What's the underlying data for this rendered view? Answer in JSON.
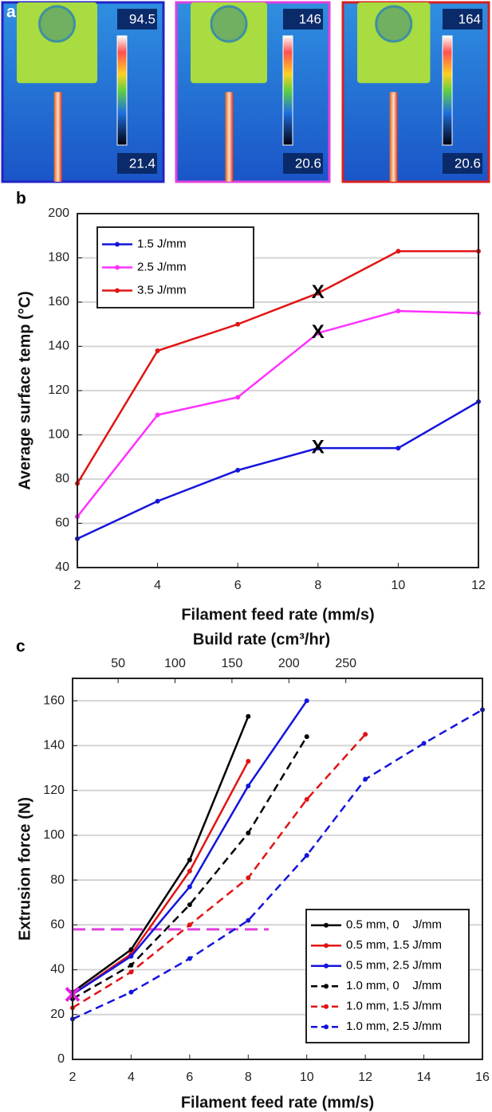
{
  "panel_a": {
    "label": "a",
    "images": [
      {
        "max": 94.5,
        "min": 21.4,
        "border": "#2323c8"
      },
      {
        "max": 146,
        "min": 20.6,
        "border": "#e040e0"
      },
      {
        "max": 164,
        "min": 20.6,
        "border": "#d82020"
      }
    ]
  },
  "chart_data": [
    {
      "type": "line",
      "label": "b",
      "xlabel": "Filament feed rate (mm/s)",
      "ylabel": "Average surface temp (°C)",
      "xlim": [
        2,
        12
      ],
      "xticks": [
        2,
        4,
        6,
        8,
        10,
        12
      ],
      "ylim": [
        40,
        200
      ],
      "yticks": [
        40,
        60,
        80,
        100,
        120,
        140,
        160,
        180,
        200
      ],
      "grid": true,
      "legend": "upper left",
      "series": [
        {
          "name": "1.5 J/mm",
          "color": "#1414dc",
          "linestyle": "solid",
          "x": [
            2,
            4,
            6,
            8,
            10,
            12
          ],
          "values": [
            53,
            70,
            84,
            94,
            94,
            115
          ]
        },
        {
          "name": "2.5 J/mm",
          "color": "#ff30ff",
          "linestyle": "solid",
          "x": [
            2,
            4,
            6,
            8,
            10,
            12
          ],
          "values": [
            63,
            109,
            117,
            146,
            156,
            155
          ]
        },
        {
          "name": "3.5 J/mm",
          "color": "#e01414",
          "linestyle": "solid",
          "x": [
            2,
            4,
            6,
            8,
            10,
            12
          ],
          "values": [
            78,
            138,
            150,
            164,
            183,
            183
          ]
        }
      ],
      "annotations": [
        {
          "text": "X",
          "x": 8,
          "y": 164
        },
        {
          "text": "X",
          "x": 8,
          "y": 146
        },
        {
          "text": "X",
          "x": 8,
          "y": 94
        }
      ]
    },
    {
      "type": "line",
      "label": "c",
      "xlabel": "Filament feed rate (mm/s)",
      "ylabel": "Extrusion force (N)",
      "x2label": "Build rate (cm³/hr)",
      "x2lim": [
        10,
        370
      ],
      "x2ticks": [
        50,
        100,
        150,
        200,
        250
      ],
      "xlim": [
        2,
        16
      ],
      "xticks": [
        2,
        4,
        6,
        8,
        10,
        12,
        14,
        16
      ],
      "ylim": [
        0,
        170
      ],
      "yticks": [
        0,
        20,
        40,
        60,
        80,
        100,
        120,
        140,
        160
      ],
      "grid": true,
      "legend": "lower right",
      "series": [
        {
          "name": "0.5 mm, 0    J/mm",
          "color": "#000000",
          "linestyle": "solid",
          "x": [
            2,
            4,
            6,
            8
          ],
          "values": [
            30,
            49,
            89,
            153
          ]
        },
        {
          "name": "0.5 mm, 1.5 J/mm",
          "color": "#e01414",
          "linestyle": "solid",
          "x": [
            2,
            4,
            6,
            8
          ],
          "values": [
            29,
            47,
            84,
            133
          ]
        },
        {
          "name": "0.5 mm, 2.5 J/mm",
          "color": "#1414dc",
          "linestyle": "solid",
          "x": [
            2,
            4,
            6,
            8,
            10
          ],
          "values": [
            29,
            46,
            77,
            122,
            160
          ]
        },
        {
          "name": "1.0 mm, 0    J/mm",
          "color": "#000000",
          "linestyle": "dashed",
          "x": [
            2,
            4,
            6,
            8,
            10
          ],
          "values": [
            27,
            42,
            69,
            101,
            144
          ]
        },
        {
          "name": "1.0 mm, 1.5 J/mm",
          "color": "#e01414",
          "linestyle": "dashed",
          "x": [
            2,
            4,
            6,
            8,
            10,
            12
          ],
          "values": [
            23,
            39,
            60,
            81,
            116,
            145
          ]
        },
        {
          "name": "1.0 mm, 2.5 J/mm",
          "color": "#1414dc",
          "linestyle": "dashed",
          "x": [
            2,
            4,
            6,
            8,
            10,
            12,
            14,
            16
          ],
          "values": [
            18,
            30,
            45,
            62,
            91,
            125,
            141,
            156
          ]
        }
      ],
      "reference_lines": [
        {
          "y": 58,
          "x": [
            2,
            8.7
          ],
          "color": "#e040e0"
        }
      ],
      "markers": [
        {
          "x": 2,
          "y": 29,
          "color": "#e020e0"
        }
      ]
    }
  ]
}
